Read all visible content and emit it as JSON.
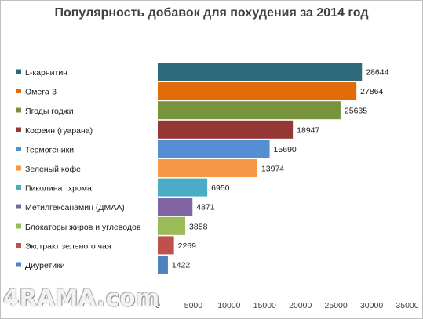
{
  "watermark": "4RAMA.com",
  "chart_data": {
    "type": "bar",
    "orientation": "horizontal",
    "title": "Популярность добавок для похудения за 2014 год",
    "xlim": [
      0,
      35000
    ],
    "x_ticks": [
      0,
      5000,
      10000,
      15000,
      20000,
      25000,
      30000,
      35000
    ],
    "grid": false,
    "legend_position": "left",
    "categories": [
      "L-карнитин",
      "Омега-3",
      "Ягоды годжи",
      "Кофеин (гуарана)",
      "Термогеники",
      "Зеленый кофе",
      "Пиколинат хрома",
      "Метилгексанамин (ДМАА)",
      "Блокаторы жиров и углеводов",
      "Экстракт зеленого чая",
      "Диуретики"
    ],
    "values": [
      28644,
      27864,
      25635,
      18947,
      15690,
      13974,
      6950,
      4871,
      3858,
      2269,
      1422
    ],
    "colors": [
      "#2e6b7a",
      "#e26b0a",
      "#77933c",
      "#953735",
      "#558ed5",
      "#f79646",
      "#4bacc6",
      "#8064a2",
      "#9bbb59",
      "#c0504d",
      "#4f81bd"
    ]
  }
}
